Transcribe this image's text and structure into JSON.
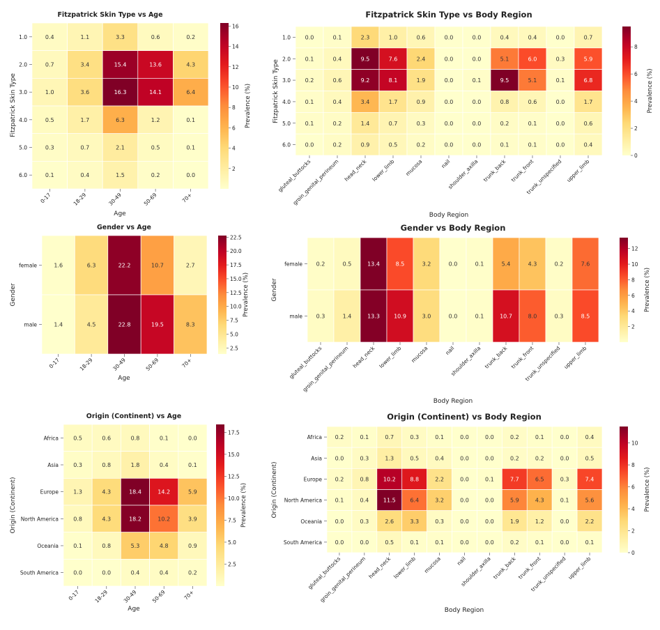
{
  "colorbar_label": "Prevalence (%)",
  "chart_data": [
    {
      "type": "heatmap",
      "title": "Fitzpatrick Skin Type vs Age",
      "xlabel": "Age",
      "ylabel": "Fitzpatrick Skin Type",
      "x": [
        "0-17",
        "18-29",
        "30-49",
        "50-69",
        "70+"
      ],
      "y": [
        "1.0",
        "2.0",
        "3.0",
        "4.0",
        "5.0",
        "6.0"
      ],
      "values": [
        [
          0.4,
          1.1,
          3.3,
          0.6,
          0.2
        ],
        [
          0.7,
          3.4,
          15.4,
          13.6,
          4.3
        ],
        [
          1.0,
          3.6,
          16.3,
          14.1,
          6.4
        ],
        [
          0.5,
          1.7,
          6.3,
          1.2,
          0.1
        ],
        [
          0.3,
          0.7,
          2.1,
          0.5,
          0.1
        ],
        [
          0.1,
          0.4,
          1.5,
          0.2,
          0.0
        ]
      ],
      "colorbar": {
        "label": "Prevalence (%)",
        "range": [
          0.0,
          16.3
        ],
        "ticks": [
          "2",
          "4",
          "6",
          "8",
          "10",
          "12",
          "14",
          "16"
        ]
      }
    },
    {
      "type": "heatmap",
      "title": "Fitzpatrick Skin Type vs Body Region",
      "xlabel": "Body Region",
      "ylabel": "Fitzpatrick Skin Type",
      "x": [
        "gluteal_buttocks",
        "groin_genital_perineum",
        "head_neck",
        "lower_limb",
        "mucosa",
        "nail",
        "shoulder_axilla",
        "trunk_back",
        "trunk_front",
        "trunk_unspecified",
        "upper_limb"
      ],
      "y": [
        "1.0",
        "2.0",
        "3.0",
        "4.0",
        "5.0",
        "6.0"
      ],
      "values": [
        [
          0.0,
          0.1,
          2.3,
          1.0,
          0.6,
          0.0,
          0.0,
          0.4,
          0.4,
          0.0,
          0.7
        ],
        [
          0.1,
          0.4,
          9.5,
          7.6,
          2.4,
          0.0,
          0.0,
          5.1,
          6.0,
          0.3,
          5.9
        ],
        [
          0.2,
          0.6,
          9.2,
          8.1,
          1.9,
          0.0,
          0.1,
          9.5,
          5.1,
          0.1,
          6.8
        ],
        [
          0.1,
          0.4,
          3.4,
          1.7,
          0.9,
          0.0,
          0.0,
          0.8,
          0.6,
          0.0,
          1.7
        ],
        [
          0.1,
          0.2,
          1.4,
          0.7,
          0.3,
          0.0,
          0.0,
          0.2,
          0.1,
          0.0,
          0.6
        ],
        [
          0.0,
          0.2,
          0.9,
          0.5,
          0.2,
          0.0,
          0.0,
          0.1,
          0.1,
          0.0,
          0.4
        ]
      ],
      "colorbar": {
        "label": "Prevalence (%)",
        "range": [
          0.0,
          9.5
        ],
        "ticks": [
          "0",
          "2",
          "4",
          "6",
          "8"
        ]
      }
    },
    {
      "type": "heatmap",
      "title": "Gender vs Age",
      "xlabel": "Age",
      "ylabel": "Gender",
      "x": [
        "0-17",
        "18-29",
        "30-49",
        "50-69",
        "70+"
      ],
      "y": [
        "female",
        "male"
      ],
      "values": [
        [
          1.6,
          6.3,
          22.2,
          10.7,
          2.7
        ],
        [
          1.4,
          4.5,
          22.8,
          19.5,
          8.3
        ]
      ],
      "colorbar": {
        "label": "Prevalence (%)",
        "range": [
          1.4,
          22.8
        ],
        "ticks": [
          "2.5",
          "5.0",
          "7.5",
          "10.0",
          "12.5",
          "15.0",
          "17.5",
          "20.0",
          "22.5"
        ]
      }
    },
    {
      "type": "heatmap",
      "title": "Gender vs Body Region",
      "xlabel": "Body Region",
      "ylabel": "Gender",
      "x": [
        "gluteal_buttocks",
        "groin_genital_perineum",
        "head_neck",
        "lower_limb",
        "mucosa",
        "nail",
        "shoulder_axilla",
        "trunk_back",
        "trunk_front",
        "trunk_unspecified",
        "upper_limb"
      ],
      "y": [
        "female",
        "male"
      ],
      "values": [
        [
          0.2,
          0.5,
          13.4,
          8.5,
          3.2,
          0.0,
          0.1,
          5.4,
          4.3,
          0.2,
          7.6
        ],
        [
          0.3,
          1.4,
          13.3,
          10.9,
          3.0,
          0.0,
          0.1,
          10.7,
          8.0,
          0.3,
          8.5
        ]
      ],
      "colorbar": {
        "label": "Prevalence (%)",
        "range": [
          0.0,
          13.4
        ],
        "ticks": [
          "2",
          "4",
          "6",
          "8",
          "10",
          "12"
        ]
      }
    },
    {
      "type": "heatmap",
      "title": "Origin (Continent) vs Age",
      "xlabel": "Age",
      "ylabel": "Origin (Continent)",
      "x": [
        "0-17",
        "18-29",
        "30-49",
        "50-69",
        "70+"
      ],
      "y": [
        "Africa",
        "Asia",
        "Europe",
        "North America",
        "Oceania",
        "South America"
      ],
      "values": [
        [
          0.5,
          0.6,
          0.8,
          0.1,
          0.0
        ],
        [
          0.3,
          0.8,
          1.8,
          0.4,
          0.1
        ],
        [
          1.3,
          4.3,
          18.4,
          14.2,
          5.9
        ],
        [
          0.8,
          4.3,
          18.2,
          10.2,
          3.9
        ],
        [
          0.1,
          0.8,
          5.3,
          4.8,
          0.9
        ],
        [
          0.0,
          0.0,
          0.4,
          0.4,
          0.2
        ]
      ],
      "colorbar": {
        "label": "Prevalence (%)",
        "range": [
          0.0,
          18.4
        ],
        "ticks": [
          "2.5",
          "5.0",
          "7.5",
          "10.0",
          "12.5",
          "15.0",
          "17.5"
        ]
      }
    },
    {
      "type": "heatmap",
      "title": "Origin (Continent) vs Body Region",
      "xlabel": "Body Region",
      "ylabel": "Origin (Continent)",
      "x": [
        "gluteal_buttocks",
        "groin_genital_perineum",
        "head_neck",
        "lower_limb",
        "mucosa",
        "nail",
        "shoulder_axilla",
        "trunk_back",
        "trunk_front",
        "trunk_unspecified",
        "upper_limb"
      ],
      "y": [
        "Africa",
        "Asia",
        "Europe",
        "North America",
        "Oceania",
        "South America"
      ],
      "values": [
        [
          0.2,
          0.1,
          0.7,
          0.3,
          0.1,
          0.0,
          0.0,
          0.2,
          0.1,
          0.0,
          0.4
        ],
        [
          0.0,
          0.3,
          1.3,
          0.5,
          0.4,
          0.0,
          0.0,
          0.2,
          0.2,
          0.0,
          0.5
        ],
        [
          0.2,
          0.8,
          10.2,
          8.8,
          2.2,
          0.0,
          0.1,
          7.7,
          6.5,
          0.3,
          7.4
        ],
        [
          0.1,
          0.4,
          11.5,
          6.4,
          3.2,
          0.0,
          0.0,
          5.9,
          4.3,
          0.1,
          5.6
        ],
        [
          0.0,
          0.3,
          2.6,
          3.3,
          0.3,
          0.0,
          0.0,
          1.9,
          1.2,
          0.0,
          2.2
        ],
        [
          0.0,
          0.0,
          0.5,
          0.1,
          0.1,
          0.0,
          0.0,
          0.2,
          0.1,
          0.0,
          0.1
        ]
      ],
      "colorbar": {
        "label": "Prevalence (%)",
        "range": [
          0.0,
          11.5
        ],
        "ticks": [
          "0",
          "2",
          "4",
          "6",
          "8",
          "10"
        ]
      }
    }
  ]
}
